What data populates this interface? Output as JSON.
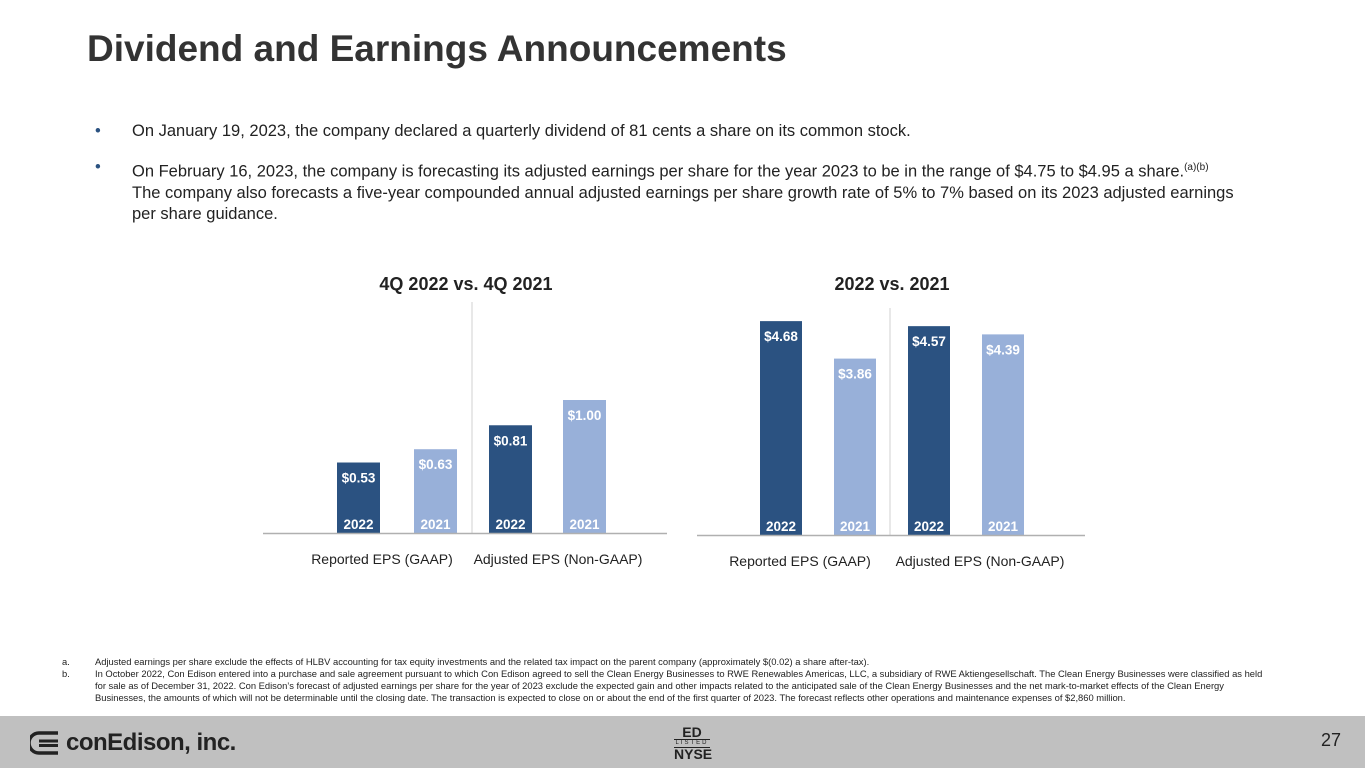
{
  "title": "Dividend and Earnings Announcements",
  "bullets": [
    {
      "text": "On January 19, 2023, the company declared a quarterly dividend of 81 cents a share on its common stock."
    },
    {
      "text": "On February 16, 2023, the company is forecasting its adjusted earnings per share for the year 2023 to be in the range of $4.75 to $4.95 a share.",
      "sup": "(a)(b)",
      "text2": "The company also forecasts a five-year compounded annual adjusted earnings per share growth rate of 5% to 7% based on its 2023 adjusted earnings per share guidance."
    }
  ],
  "bullet_glyph": "•",
  "colors": {
    "current": "#2b5281",
    "prior": "#98b0d9",
    "axis": "#b0b0b0"
  },
  "chart_data": [
    {
      "type": "bar",
      "title": "4Q 2022 vs. 4Q 2021",
      "groups": [
        "Reported EPS (GAAP)",
        "Adjusted EPS (Non-GAAP)"
      ],
      "bars": [
        {
          "group": 0,
          "year": "2022",
          "value": 0.53,
          "label": "$0.53"
        },
        {
          "group": 0,
          "year": "2021",
          "value": 0.63,
          "label": "$0.63"
        },
        {
          "group": 1,
          "year": "2022",
          "value": 0.81,
          "label": "$0.81"
        },
        {
          "group": 1,
          "year": "2021",
          "value": 1.0,
          "label": "$1.00"
        }
      ]
    },
    {
      "type": "bar",
      "title": "2022 vs. 2021",
      "groups": [
        "Reported EPS (GAAP)",
        "Adjusted EPS (Non-GAAP)"
      ],
      "bars": [
        {
          "group": 0,
          "year": "2022",
          "value": 4.68,
          "label": "$4.68"
        },
        {
          "group": 0,
          "year": "2021",
          "value": 3.86,
          "label": "$3.86"
        },
        {
          "group": 1,
          "year": "2022",
          "value": 4.57,
          "label": "$4.57"
        },
        {
          "group": 1,
          "year": "2021",
          "value": 4.39,
          "label": "$4.39"
        }
      ]
    }
  ],
  "notes": [
    {
      "key": "a.",
      "text": "Adjusted earnings per share exclude the effects of HLBV accounting for tax equity investments and the related tax impact on the parent company (approximately $(0.02) a share after-tax)."
    },
    {
      "key": "b.",
      "text": "In October 2022, Con Edison entered into a purchase and sale agreement pursuant to which Con Edison agreed to sell the Clean Energy Businesses to RWE Renewables Americas, LLC, a subsidiary of RWE Aktiengesellschaft. The Clean Energy Businesses were classified as held for sale as of December 31, 2022. Con Edison’s forecast of adjusted earnings per share for the year of 2023 exclude the expected gain and other impacts related to the anticipated sale of the Clean Energy Businesses and the net mark-to-market effects of the Clean Energy Businesses, the amounts of which will not be determinable until the closing date. The transaction is expected to close on or about the end of the first quarter of 2023. The forecast reflects other operations and maintenance expenses of $2,860 million."
    }
  ],
  "footer": {
    "logo": "conEdison, inc.",
    "nyse_top": "ED",
    "nyse_mid": "LISTED",
    "nyse_bottom": "NYSE",
    "page": "27"
  }
}
